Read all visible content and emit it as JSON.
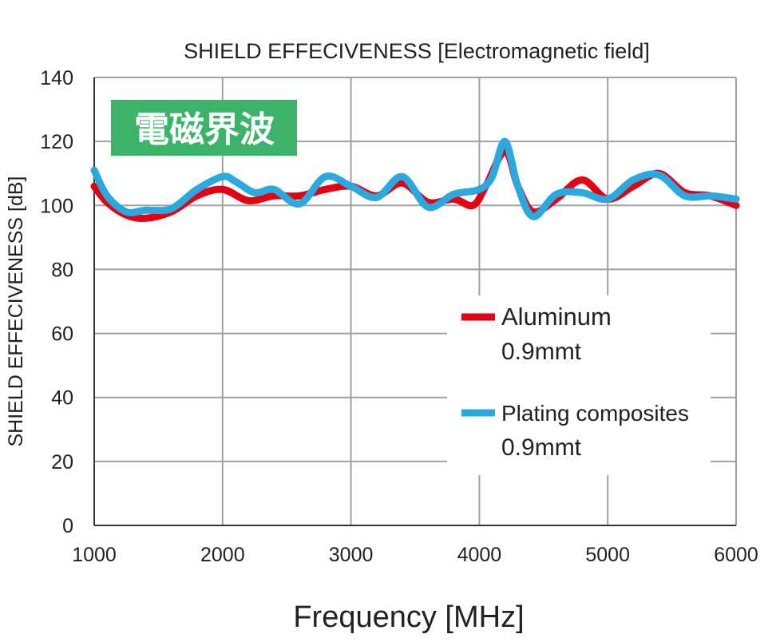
{
  "chart_data": {
    "type": "line",
    "title": "SHIELD EFFECIVENESS [Electromagnetic field]",
    "badge": "電磁界波",
    "xlabel": "Frequency [MHz]",
    "ylabel": "SHIELD EFFECIVENESS [dB]",
    "xlim": [
      1000,
      6000
    ],
    "ylim": [
      0,
      140
    ],
    "xticks": [
      1000,
      2000,
      3000,
      4000,
      5000,
      6000
    ],
    "yticks": [
      0,
      20,
      40,
      60,
      80,
      100,
      120,
      140
    ],
    "grid": true,
    "legend_position": "center-right",
    "series": [
      {
        "name": "Aluminum",
        "name2": "0.9mmt",
        "color": "#e60012",
        "x": [
          1000,
          1100,
          1250,
          1400,
          1600,
          1800,
          2000,
          2200,
          2400,
          2600,
          2800,
          3000,
          3200,
          3400,
          3600,
          3800,
          3950,
          4050,
          4200,
          4300,
          4420,
          4600,
          4800,
          5000,
          5200,
          5400,
          5600,
          5800,
          6000
        ],
        "y": [
          106,
          101,
          97,
          96,
          98,
          103,
          105,
          101.5,
          103,
          103,
          105,
          106,
          103,
          107,
          101,
          102,
          100,
          106,
          117,
          106,
          98,
          102,
          108,
          102,
          106,
          110,
          104,
          103,
          100
        ]
      },
      {
        "name": "Plating composites",
        "name2": "0.9mmt",
        "color": "#29a9e0",
        "x": [
          1000,
          1100,
          1250,
          1400,
          1600,
          1800,
          2000,
          2100,
          2250,
          2400,
          2600,
          2800,
          3000,
          3200,
          3400,
          3600,
          3800,
          4000,
          4100,
          4200,
          4300,
          4420,
          4600,
          4800,
          5000,
          5200,
          5400,
          5600,
          5800,
          6000
        ],
        "y": [
          111,
          103,
          98,
          98.5,
          99,
          105,
          109,
          107.5,
          104,
          105,
          100.5,
          109,
          106,
          102.5,
          109,
          99.5,
          103.5,
          105,
          109,
          120,
          106,
          96.5,
          103.5,
          104,
          102,
          108,
          109.5,
          103,
          103,
          102
        ]
      }
    ]
  },
  "colors": {
    "badge": "#3bb46a",
    "grid": "#a0a0a0"
  }
}
